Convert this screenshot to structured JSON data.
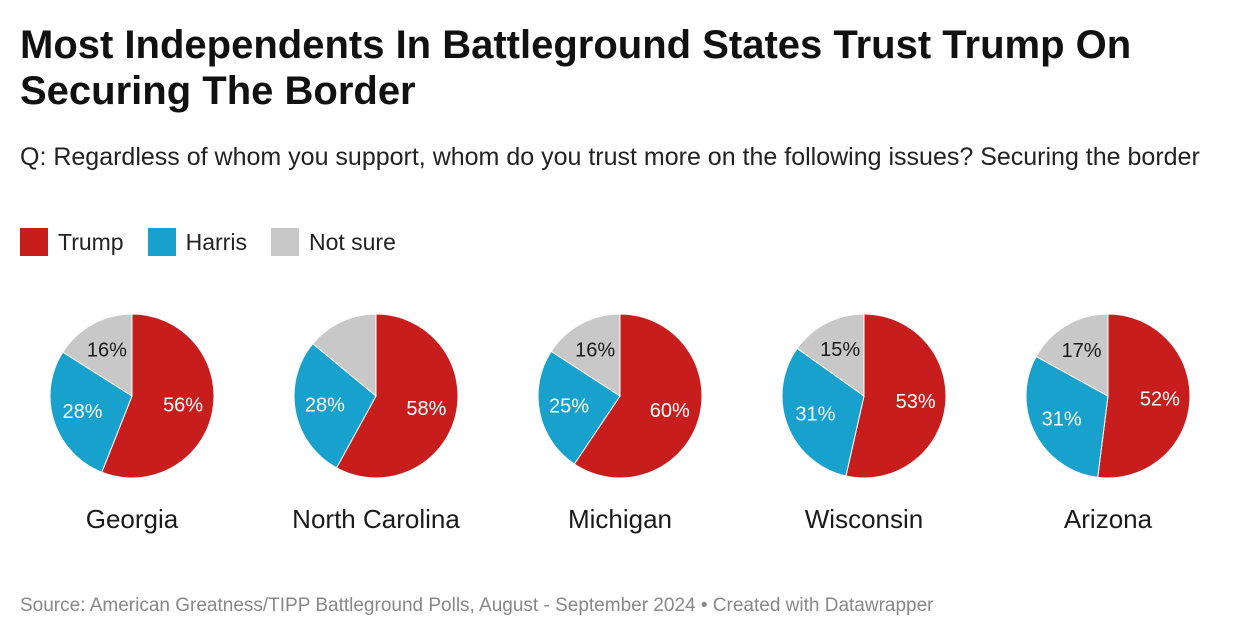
{
  "title": "Most Independents In Battleground States Trust Trump On Securing The Border",
  "subtitle": "Q: Regardless of whom you support, whom do you trust more on the following issues? Securing the border",
  "legend": [
    {
      "label": "Trump",
      "color": "#c71e1d"
    },
    {
      "label": "Harris",
      "color": "#18a1cd"
    },
    {
      "label": "Not sure",
      "color": "#c8c8c8"
    }
  ],
  "source": "Source: American Greatness/TIPP Battleground Polls, August - September 2024 • Created with Datawrapper",
  "chart_data": {
    "type": "pie",
    "series_order": [
      "Trump",
      "Harris",
      "Not sure"
    ],
    "colors": {
      "Trump": "#c71e1d",
      "Harris": "#18a1cd",
      "Not sure": "#c8c8c8"
    },
    "label_colors": {
      "Trump": "#ffffff",
      "Harris": "#ffffff",
      "Not sure": "#1a1a1a"
    },
    "pies": [
      {
        "name": "Georgia",
        "values": {
          "Trump": 56,
          "Harris": 28,
          "Not sure": 16
        },
        "labels": {
          "Trump": "56%",
          "Harris": "28%",
          "Not sure": "16%"
        }
      },
      {
        "name": "North Carolina",
        "values": {
          "Trump": 58,
          "Harris": 28,
          "Not sure": 14
        },
        "labels": {
          "Trump": "58%",
          "Harris": "28%",
          "Not sure": ""
        }
      },
      {
        "name": "Michigan",
        "values": {
          "Trump": 60,
          "Harris": 25,
          "Not sure": 16
        },
        "labels": {
          "Trump": "60%",
          "Harris": "25%",
          "Not sure": "16%"
        }
      },
      {
        "name": "Wisconsin",
        "values": {
          "Trump": 53,
          "Harris": 31,
          "Not sure": 15
        },
        "labels": {
          "Trump": "53%",
          "Harris": "31%",
          "Not sure": "15%"
        }
      },
      {
        "name": "Arizona",
        "values": {
          "Trump": 52,
          "Harris": 31,
          "Not sure": 17
        },
        "labels": {
          "Trump": "52%",
          "Harris": "31%",
          "Not sure": "17%"
        }
      }
    ]
  }
}
